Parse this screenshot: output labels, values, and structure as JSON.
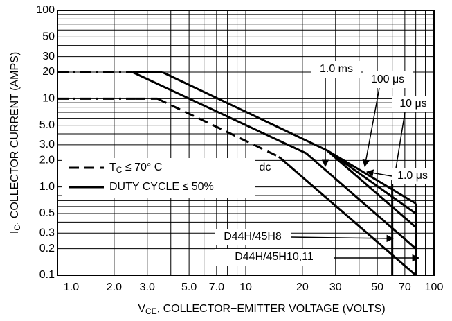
{
  "chart_data": {
    "type": "line",
    "xscale": "log",
    "yscale": "log",
    "grid": true,
    "xlabel": {
      "main": "V",
      "sub": "CE",
      "rest": ", COLLECTOR−EMITTER VOLTAGE (VOLTS)"
    },
    "ylabel": {
      "main": "I",
      "sub": "C",
      "rest": ", COLLECTOR CURRENT (AMPS)"
    },
    "xlim": [
      1,
      100
    ],
    "ylim": [
      0.1,
      100
    ],
    "xticks": [
      {
        "value": 1,
        "label": "1.0"
      },
      {
        "value": 2,
        "label": "2.0"
      },
      {
        "value": 3,
        "label": "3.0"
      },
      {
        "value": 5,
        "label": "5.0"
      },
      {
        "value": 7,
        "label": "7.0"
      },
      10,
      20,
      30,
      50,
      70,
      100
    ],
    "yticks": [
      0.1,
      0.2,
      0.3,
      0.5,
      {
        "value": 1,
        "label": "1.0"
      },
      {
        "value": 2,
        "label": "2.0"
      },
      {
        "value": 3,
        "label": "3.0"
      },
      {
        "value": 5,
        "label": "5.0"
      },
      10,
      20,
      30,
      50,
      100
    ],
    "x_minor_grid": [
      4,
      6,
      8,
      9,
      40,
      60,
      80,
      90
    ],
    "y_minor_grid": [
      0.4,
      0.6,
      0.7,
      0.8,
      0.9,
      4,
      6,
      7,
      8,
      9,
      40,
      60,
      70,
      80,
      90
    ],
    "color": "#000000",
    "series": [
      {
        "name": "dc",
        "x": [
          1,
          2.6,
          3.4,
          15,
          80
        ],
        "values": [
          10,
          10,
          10,
          2.2,
          0.1
        ],
        "segment_styles": [
          "dash-dot",
          "dashed",
          "dashed",
          "solid"
        ]
      },
      {
        "name": "1.0 ms",
        "x": [
          1,
          2.5,
          21,
          80
        ],
        "values": [
          20,
          20,
          2.4,
          0.2
        ],
        "segment_styles": [
          "dash-dot",
          "solid",
          "solid"
        ]
      },
      {
        "name": "100 μs",
        "x": [
          2.5,
          3.6,
          27,
          80
        ],
        "values": [
          20,
          20,
          2.6,
          0.35
        ],
        "segment_styles": [
          "solid",
          "solid",
          "solid"
        ]
      },
      {
        "name": "10 μs",
        "x": [
          27,
          80
        ],
        "values": [
          2.6,
          0.5
        ],
        "segment_styles": [
          "solid"
        ]
      },
      {
        "name": "1.0 μs",
        "x": [
          27,
          80
        ],
        "values": [
          2.6,
          0.65
        ],
        "segment_styles": [
          "solid"
        ]
      },
      {
        "name": "D44H/45H8",
        "x": [
          60,
          60
        ],
        "values": [
          0.1,
          1.2
        ],
        "segment_styles": [
          "solid"
        ]
      },
      {
        "name": "D44H/45H10,11",
        "x": [
          80,
          80
        ],
        "values": [
          0.1,
          0.65
        ],
        "segment_styles": [
          "solid"
        ]
      }
    ],
    "legend": [
      {
        "main": "T",
        "sub": "C",
        "rest": " ≤ 70° C",
        "style": "dashed"
      },
      {
        "label": "DUTY CYCLE ≤ 50%",
        "style": "solid"
      }
    ]
  }
}
